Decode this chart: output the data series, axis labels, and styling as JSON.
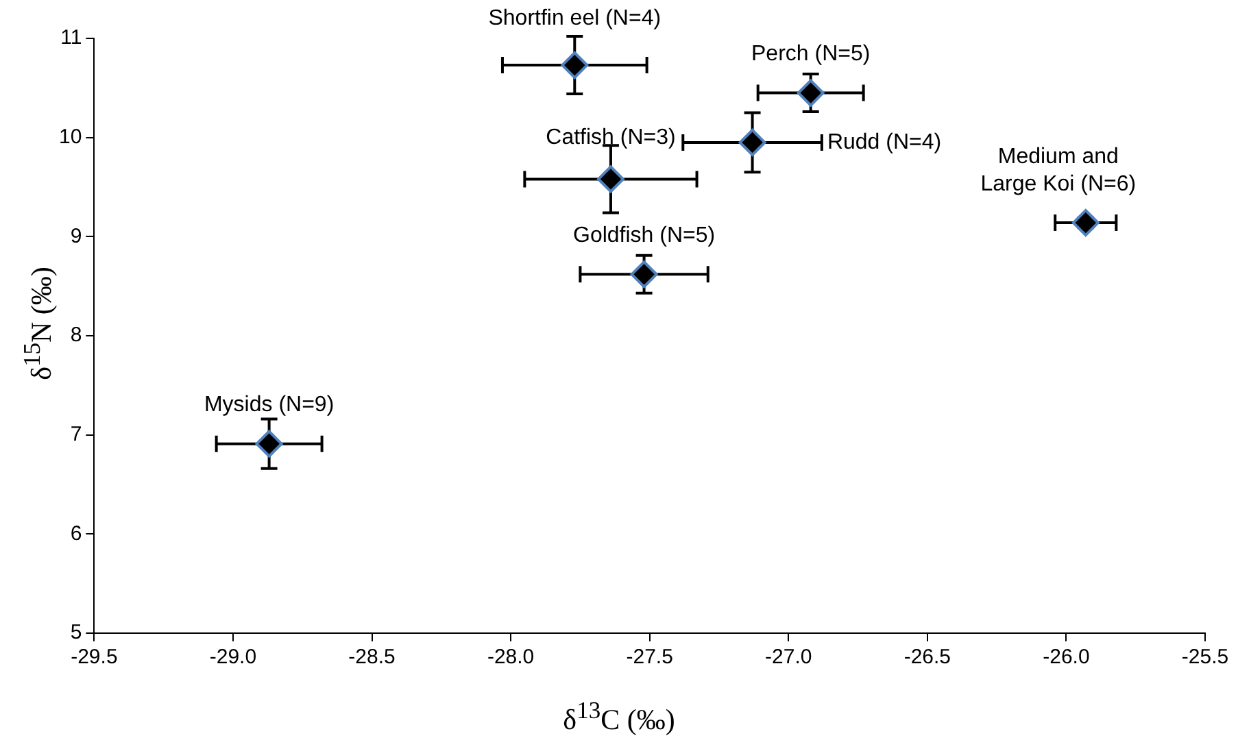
{
  "chart_data": {
    "type": "scatter",
    "xlabel": "δ$^{13}$C (‰)",
    "ylabel": "δ$^{15}$N (‰)",
    "x": [
      -27.77,
      -26.92,
      -27.13,
      -27.64,
      -27.52,
      -28.87,
      -25.93
    ],
    "values": [
      10.73,
      10.45,
      9.95,
      9.58,
      8.62,
      6.91,
      9.14
    ],
    "xerrors": [
      0.26,
      0.19,
      0.25,
      0.31,
      0.23,
      0.19,
      0.11
    ],
    "errors": [
      0.29,
      0.19,
      0.3,
      0.34,
      0.19,
      0.25,
      0.05
    ],
    "color": "#000000",
    "marker": "diamond",
    "grid": false,
    "legend": false,
    "xlim": [
      -29.5,
      -25.5
    ],
    "xticks": [
      -29.5,
      {
        "value": -29,
        "label": "-29.0"
      },
      -28.5,
      {
        "value": -28,
        "label": "-28.0"
      },
      -27.5,
      {
        "value": -27,
        "label": "-27.0"
      },
      -26.5,
      {
        "value": -26,
        "label": "-26.0"
      },
      -25.5
    ],
    "ylim": [
      5,
      11
    ],
    "yticks": [
      5,
      6,
      7,
      8,
      9,
      10,
      11
    ],
    "annotations": [
      {
        "text": "Shortfin eel (N=4)",
        "x": -27.77,
        "y": 10.73
      },
      {
        "text": "Perch (N=5)",
        "x": -26.92,
        "y": 10.45
      },
      {
        "text": "Rudd (N=4)",
        "x": -26.88,
        "y": 9.95
      },
      {
        "text": "Catfish (N=3)",
        "x": -27.64,
        "y": 9.58
      },
      {
        "text": "Goldfish (N=5)",
        "x": -27.52,
        "y": 8.62
      },
      {
        "text": "Mysids (N=9)",
        "x": -28.87,
        "y": 6.91
      },
      {
        "text": "Medium and Large Koi (N=6)",
        "x": -25.93,
        "y": 9.14
      }
    ]
  }
}
